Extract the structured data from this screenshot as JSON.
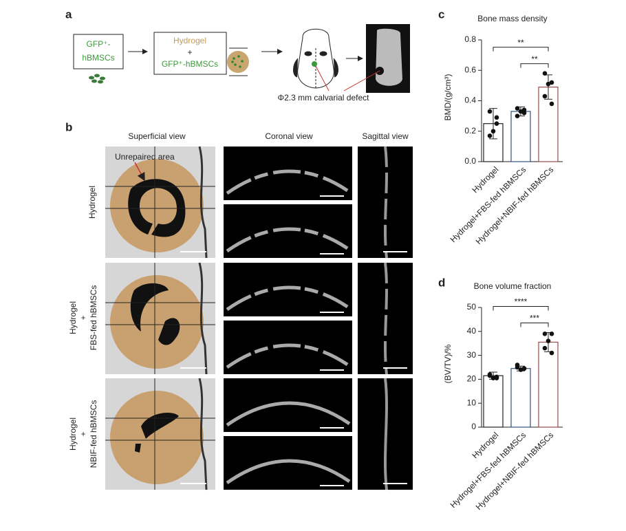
{
  "panel_labels": [
    "a",
    "b",
    "c",
    "d"
  ],
  "schematic": {
    "box1": [
      "GFP⁺-",
      "hBMSCs"
    ],
    "box2": [
      "Hydrogel",
      "+",
      "GFP⁺-hBMSCs"
    ],
    "defect_label": "Φ2.3 mm calvarial defect"
  },
  "imaging": {
    "columns": [
      "Superficial view",
      "Coronal view",
      "Sagittal view"
    ],
    "rows": [
      [
        "Hydrogel"
      ],
      [
        "Hydrogel",
        "+",
        "FBS-fed hBMSCs"
      ],
      [
        "Hydrogel",
        "+",
        "NBIF-fed hBMSCs"
      ]
    ],
    "annotation": "Unrepaired area"
  },
  "chart_data": [
    {
      "type": "bar",
      "title": "Bone mass density",
      "ylabel": "BMD/(g/cm³)",
      "categories": [
        "Hydrogel",
        "Hydrogel+FBS-fed hBMSCs",
        "Hydrogel+NBIF-fed hBMSCs"
      ],
      "values": [
        0.25,
        0.33,
        0.49
      ],
      "errors": [
        0.1,
        0.03,
        0.08
      ],
      "points": [
        [
          0.33,
          0.29,
          0.2,
          0.17,
          0.25
        ],
        [
          0.35,
          0.34,
          0.33,
          0.3,
          0.32
        ],
        [
          0.58,
          0.52,
          0.51,
          0.43,
          0.38
        ]
      ],
      "colors": [
        "#222222",
        "#2f4f7f",
        "#9a4a4a"
      ],
      "ylim": [
        0,
        0.8
      ],
      "yticks": [
        {
          "value": 0,
          "label": "0.0"
        },
        0.2,
        0.4,
        0.6,
        0.8
      ],
      "significance": [
        "**",
        "**"
      ]
    },
    {
      "type": "bar",
      "title": "Bone volume fraction",
      "ylabel": "(BV/TV)/%",
      "categories": [
        "Hydrogel",
        "Hydrogel+FBS-fed hBMSCs",
        "Hydrogel+NBIF-fed hBMSCs"
      ],
      "values": [
        21.5,
        24.5,
        35.5
      ],
      "errors": [
        1.5,
        1,
        4
      ],
      "points": [
        [
          22,
          21,
          20.5,
          21.5,
          20.5
        ],
        [
          26,
          24.5,
          24,
          25,
          24.5
        ],
        [
          39,
          39,
          36,
          33,
          31
        ]
      ],
      "colors": [
        "#222222",
        "#2f4f7f",
        "#9a4a4a"
      ],
      "ylim": [
        0,
        50
      ],
      "yticks": [
        0,
        10,
        20,
        30,
        40,
        50
      ],
      "significance": [
        "****",
        "***"
      ]
    }
  ]
}
